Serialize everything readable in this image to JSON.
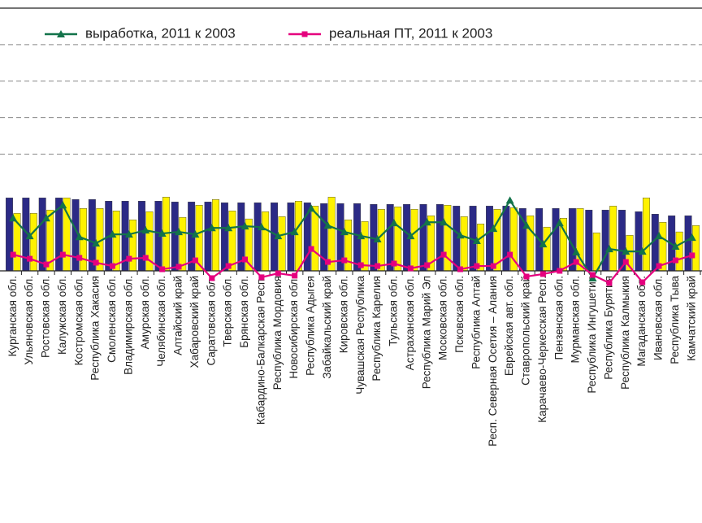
{
  "chart_data": {
    "type": "bar",
    "categories": [
      "Курганская обл.",
      "Ульяновская обл.",
      "Ростовская обл.",
      "Калужская обл.",
      "Костромская обл.",
      "Республика Хакасия",
      "Смоленская обл.",
      "Владимирская обл.",
      "Амурская обл.",
      "Челябинская обл.",
      "Алтайский край",
      "Хабаровский край",
      "Саратовская обл.",
      "Тверская обл.",
      "Брянская обл.",
      "Кабардино-Балкарская Респ.",
      "Республика Мордовия",
      "Новосибирская обл.",
      "Республика Адыгея",
      "Забайкальский край",
      "Кировская обл.",
      "Чувашская Республика",
      "Республика Карелия",
      "Тульская обл.",
      "Астраханская обл.",
      "Республика Марий Эл",
      "Московская обл.",
      "Псковская обл.",
      "Республика Алтай",
      "Респ. Северная Осетия – Алания",
      "Еврейская авт. обл.",
      "Ставропольский край",
      "Карачаево-Черкесская Респ.",
      "Пензенская обл.",
      "Мурманская обл.",
      "Республика Ингушетия",
      "Республика Бурятия",
      "Республика Калмыкия",
      "Магаданская обл.",
      "Ивановская обл.",
      "Республика Тыва",
      "Камчатский край"
    ],
    "series": [
      {
        "type": "bar",
        "color": "#2b2a86",
        "values": [
          70,
          70,
          70,
          70,
          68.9,
          68.9,
          67.8,
          67.8,
          67.8,
          67.8,
          67.2,
          67.2,
          67.2,
          66.7,
          66.7,
          66.7,
          66.7,
          66.7,
          66.7,
          66.1,
          66.1,
          66.1,
          65.6,
          65.6,
          65.6,
          65.6,
          65.6,
          64.4,
          64.4,
          64.4,
          64.4,
          62.8,
          62.8,
          62.8,
          62.8,
          61.7,
          61.7,
          61.7,
          60.6,
          58.9,
          57.8,
          57.8
        ]
      },
      {
        "type": "bar",
        "color": "#fff200",
        "values": [
          59.4,
          59.4,
          61.7,
          70,
          62.8,
          62.8,
          61.1,
          55,
          60.6,
          70.6,
          56.7,
          65,
          68.9,
          61.1,
          55.6,
          60.6,
          57.2,
          67.8,
          64.4,
          70.6,
          55,
          53.9,
          62.2,
          63.9,
          62.2,
          57.8,
          65,
          57.2,
          52.2,
          62.2,
          63.3,
          57.8,
          50,
          56.1,
          62.8,
          46.1,
          64.4,
          44.4,
          70,
          53.3,
          46.7,
          51.1
        ]
      },
      {
        "type": "line",
        "name": "выработка, 2011 к 2003",
        "color": "#13734a",
        "values": [
          56.1,
          43.9,
          56.1,
          65,
          43.3,
          38.9,
          45,
          45,
          47.8,
          45.6,
          46.7,
          45,
          49.4,
          49.4,
          50.6,
          50,
          43.9,
          46.7,
          62.8,
          51.1,
          46.7,
          43.9,
          41.7,
          52.8,
          43.9,
          53.3,
          53.3,
          44.4,
          40.6,
          48.9,
          68.3,
          51.1,
          38.3,
          52.8,
          32.8,
          15,
          35,
          33.3,
          33.3,
          43.9,
          36.7,
          42.8
        ]
      },
      {
        "type": "line",
        "name": "реальная ПТ, 2011 к 2003",
        "color": "#e5007e",
        "values": [
          31.1,
          28.3,
          24.4,
          31.1,
          28.9,
          25.6,
          23.3,
          28.3,
          28.9,
          21.1,
          22.8,
          27.2,
          15,
          23.3,
          27.8,
          15.6,
          18.3,
          16.7,
          35,
          26.1,
          27.2,
          23.9,
          23.3,
          25,
          21.7,
          23.9,
          31.1,
          21.1,
          23.3,
          23.3,
          31.1,
          16.1,
          17.8,
          20,
          26.1,
          17.2,
          11.7,
          26.1,
          12.2,
          23.3,
          27.2,
          30.6
        ]
      }
    ],
    "ylim": [
      20,
      200
    ],
    "yticks": [
      100,
      125,
      150,
      175
    ],
    "grid": true
  }
}
